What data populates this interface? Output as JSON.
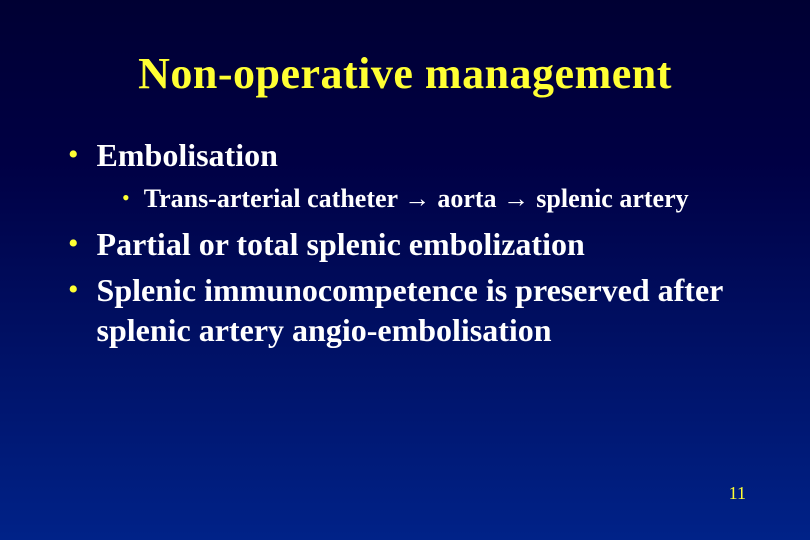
{
  "slide": {
    "title": "Non-operative management",
    "title_color": "#ffff33",
    "text_color": "#ffffff",
    "bullet_color": "#ffff33",
    "background_gradient": [
      "#000033",
      "#000044",
      "#002288"
    ],
    "title_fontsize": 44,
    "l1_fontsize": 32,
    "l2_fontsize": 26,
    "bullets": [
      {
        "level": 1,
        "text": "Embolisation"
      },
      {
        "level": 2,
        "text": "Trans-arterial catheter → aorta → splenic artery"
      },
      {
        "level": 1,
        "text": "Partial or total splenic embolization"
      },
      {
        "level": 1,
        "text": "Splenic immunocompetence is preserved after splenic artery angio-embolisation"
      }
    ],
    "page_number": "11"
  }
}
